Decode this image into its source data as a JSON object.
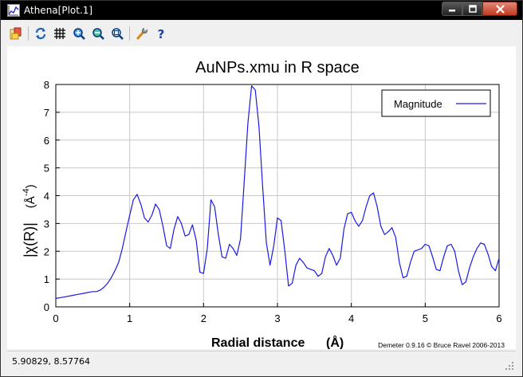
{
  "window": {
    "title": "Athena[Plot.1]"
  },
  "toolbar": {
    "buttons": [
      {
        "icon": "open-folder-icon"
      },
      {
        "icon": "refresh-icon"
      },
      {
        "icon": "grid-icon"
      },
      {
        "icon": "zoom-in-icon"
      },
      {
        "icon": "zoom-out-icon"
      },
      {
        "icon": "zoom-fit-icon"
      },
      {
        "icon": "settings-wrench-icon"
      },
      {
        "icon": "help-icon"
      }
    ]
  },
  "colors": {
    "line": "#1a1ae6",
    "grid": "#c8c8c8",
    "titlebar": "#000000"
  },
  "chart_data": {
    "type": "line",
    "title": "AuNPs.xmu in R space",
    "xlabel": "Radial distance",
    "xunit": "(Å)",
    "ylabel_main": "|χ(R)|",
    "ylabel_unit_prefix": "(Å",
    "ylabel_unit_exp": "-4",
    "ylabel_unit_suffix": ")",
    "xlim": [
      0,
      6
    ],
    "ylim": [
      0,
      8
    ],
    "xticks": [
      "0",
      "1",
      "2",
      "3",
      "4",
      "5",
      "6"
    ],
    "yticks": [
      "0",
      "1",
      "2",
      "3",
      "4",
      "5",
      "6",
      "7",
      "8"
    ],
    "grid": true,
    "legend_position": "top-right",
    "credit": "Demeter 0.9.16 © Bruce Ravel 2006-2013",
    "series": [
      {
        "name": "Magnitude",
        "x": [
          0.0,
          0.1,
          0.2,
          0.3,
          0.4,
          0.5,
          0.55,
          0.6,
          0.65,
          0.7,
          0.75,
          0.8,
          0.85,
          0.9,
          0.95,
          1.0,
          1.05,
          1.1,
          1.15,
          1.2,
          1.25,
          1.3,
          1.35,
          1.4,
          1.45,
          1.5,
          1.55,
          1.6,
          1.65,
          1.7,
          1.75,
          1.8,
          1.85,
          1.9,
          1.95,
          2.0,
          2.05,
          2.1,
          2.15,
          2.2,
          2.25,
          2.3,
          2.35,
          2.4,
          2.45,
          2.5,
          2.55,
          2.6,
          2.65,
          2.7,
          2.75,
          2.8,
          2.85,
          2.9,
          2.95,
          3.0,
          3.05,
          3.1,
          3.15,
          3.2,
          3.25,
          3.3,
          3.35,
          3.4,
          3.45,
          3.5,
          3.55,
          3.6,
          3.65,
          3.7,
          3.75,
          3.8,
          3.85,
          3.9,
          3.95,
          4.0,
          4.05,
          4.1,
          4.15,
          4.2,
          4.25,
          4.3,
          4.35,
          4.4,
          4.45,
          4.5,
          4.55,
          4.6,
          4.65,
          4.7,
          4.75,
          4.8,
          4.85,
          4.9,
          4.95,
          5.0,
          5.05,
          5.1,
          5.15,
          5.2,
          5.25,
          5.3,
          5.35,
          5.4,
          5.45,
          5.5,
          5.55,
          5.6,
          5.65,
          5.7,
          5.75,
          5.8,
          5.85,
          5.9,
          5.95,
          6.0
        ],
        "y": [
          0.3,
          0.35,
          0.4,
          0.45,
          0.5,
          0.55,
          0.55,
          0.6,
          0.7,
          0.85,
          1.05,
          1.3,
          1.6,
          2.1,
          2.7,
          3.3,
          3.85,
          4.05,
          3.7,
          3.2,
          3.05,
          3.3,
          3.7,
          3.5,
          2.9,
          2.2,
          2.1,
          2.8,
          3.25,
          3.0,
          2.55,
          2.6,
          2.95,
          2.4,
          1.25,
          1.2,
          2.1,
          3.85,
          3.6,
          2.6,
          1.8,
          1.75,
          2.25,
          2.1,
          1.85,
          2.45,
          4.5,
          6.6,
          7.95,
          7.8,
          6.5,
          4.3,
          2.3,
          1.5,
          2.2,
          3.2,
          3.1,
          2.0,
          0.75,
          0.85,
          1.5,
          1.75,
          1.6,
          1.4,
          1.35,
          1.3,
          1.1,
          1.2,
          1.8,
          2.1,
          1.85,
          1.5,
          1.75,
          2.8,
          3.35,
          3.4,
          3.1,
          2.9,
          3.1,
          3.6,
          4.0,
          4.1,
          3.6,
          2.9,
          2.6,
          2.7,
          2.85,
          2.5,
          1.6,
          1.05,
          1.1,
          1.6,
          2.0,
          2.05,
          2.1,
          2.25,
          2.2,
          1.8,
          1.35,
          1.3,
          1.8,
          2.2,
          2.25,
          2.0,
          1.3,
          0.8,
          0.9,
          1.4,
          1.8,
          2.1,
          2.3,
          2.25,
          1.9,
          1.45,
          1.3,
          1.75
        ]
      }
    ]
  },
  "status": {
    "coordinates": "5.90829,  8.57764"
  }
}
